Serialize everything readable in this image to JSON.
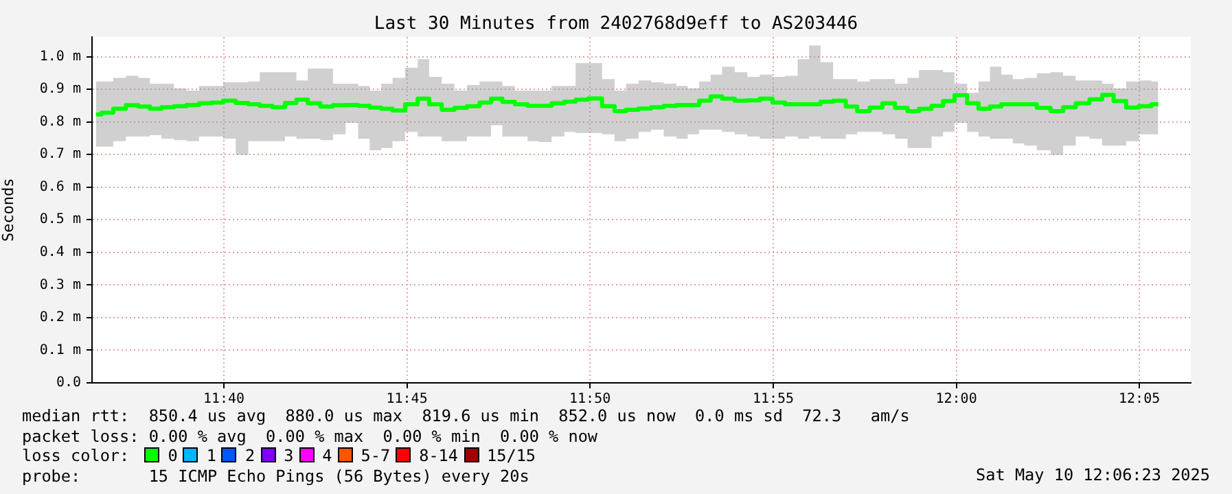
{
  "chart_data": {
    "type": "line",
    "title": "Last 30 Minutes from 2402768d9eff to AS203446",
    "ylabel": "Seconds",
    "xlim": [
      11.6067,
      12.1067
    ],
    "ylim": [
      0,
      1.06
    ],
    "xticks": [
      {
        "value": 11.6667,
        "label": "11:40"
      },
      {
        "value": 11.75,
        "label": "11:45"
      },
      {
        "value": 11.8333,
        "label": "11:50"
      },
      {
        "value": 11.9167,
        "label": "11:55"
      },
      {
        "value": 12.0,
        "label": "12:00"
      },
      {
        "value": 12.0833,
        "label": "12:05"
      }
    ],
    "yticks": [
      {
        "value": 0,
        "label": "0.0"
      },
      {
        "value": 0.1,
        "label": "0.1 m"
      },
      {
        "value": 0.2,
        "label": "0.2 m"
      },
      {
        "value": 0.3,
        "label": "0.3 m"
      },
      {
        "value": 0.4,
        "label": "0.4 m"
      },
      {
        "value": 0.5,
        "label": "0.5 m"
      },
      {
        "value": 0.6,
        "label": "0.6 m"
      },
      {
        "value": 0.7,
        "label": "0.7 m"
      },
      {
        "value": 0.8,
        "label": "0.8 m"
      },
      {
        "value": 0.9,
        "label": "0.9 m"
      },
      {
        "value": 1.0,
        "label": "1.0 m"
      }
    ],
    "grid": true,
    "marker": "none",
    "line_style": "solid",
    "series": [
      {
        "color": "#00ff00",
        "x": [
          11.6085,
          11.6137,
          11.619,
          11.6252,
          11.6304,
          11.6357,
          11.6409,
          11.6471,
          11.6523,
          11.6585,
          11.6637,
          11.669,
          11.6752,
          11.6804,
          11.6857,
          11.6919,
          11.6971,
          11.7023,
          11.7075,
          11.7137,
          11.719,
          11.7252,
          11.7304,
          11.7357,
          11.7409,
          11.746,
          11.7523,
          11.7575,
          11.7627,
          11.769,
          11.7742,
          11.7804,
          11.7857,
          11.7908,
          11.796,
          11.8023,
          11.8075,
          11.8127,
          11.819,
          11.8242,
          11.8293,
          11.8357,
          11.8419,
          11.8471,
          11.8523,
          11.8585,
          11.8637,
          11.87,
          11.8752,
          11.8804,
          11.8856,
          11.8908,
          11.896,
          11.9023,
          11.9075,
          11.9137,
          11.919,
          11.9252,
          11.9304,
          11.9356,
          11.9408,
          11.9471,
          11.9523,
          11.9575,
          11.9637,
          11.969,
          11.9752,
          11.9804,
          11.9856,
          11.9919,
          11.996,
          12.0023,
          12.0075,
          12.0127,
          12.0179,
          12.0231,
          12.0283,
          12.0335,
          12.0398,
          12.046,
          12.0512,
          12.0575,
          12.0637,
          12.069,
          12.0742,
          12.0804,
          12.0857,
          12.0919
        ],
        "values": [
          0.823,
          0.828,
          0.84,
          0.851,
          0.847,
          0.84,
          0.845,
          0.848,
          0.852,
          0.857,
          0.859,
          0.865,
          0.858,
          0.854,
          0.849,
          0.845,
          0.858,
          0.868,
          0.857,
          0.847,
          0.851,
          0.852,
          0.849,
          0.844,
          0.84,
          0.835,
          0.854,
          0.871,
          0.854,
          0.837,
          0.843,
          0.848,
          0.859,
          0.871,
          0.861,
          0.854,
          0.849,
          0.849,
          0.857,
          0.862,
          0.868,
          0.872,
          0.848,
          0.833,
          0.837,
          0.841,
          0.845,
          0.849,
          0.852,
          0.852,
          0.865,
          0.878,
          0.871,
          0.865,
          0.866,
          0.871,
          0.859,
          0.854,
          0.854,
          0.854,
          0.862,
          0.865,
          0.847,
          0.833,
          0.844,
          0.857,
          0.843,
          0.833,
          0.84,
          0.849,
          0.864,
          0.882,
          0.857,
          0.84,
          0.847,
          0.854,
          0.854,
          0.854,
          0.843,
          0.833,
          0.845,
          0.857,
          0.869,
          0.883,
          0.864,
          0.844,
          0.848,
          0.854
        ],
        "lower": [
          0.724,
          0.724,
          0.741,
          0.755,
          0.755,
          0.759,
          0.748,
          0.744,
          0.741,
          0.755,
          0.755,
          0.748,
          0.699,
          0.741,
          0.741,
          0.741,
          0.755,
          0.748,
          0.748,
          0.744,
          0.762,
          0.797,
          0.748,
          0.713,
          0.72,
          0.741,
          0.769,
          0.755,
          0.755,
          0.741,
          0.741,
          0.755,
          0.755,
          0.79,
          0.755,
          0.755,
          0.741,
          0.738,
          0.755,
          0.769,
          0.766,
          0.766,
          0.762,
          0.741,
          0.748,
          0.769,
          0.776,
          0.755,
          0.748,
          0.762,
          0.776,
          0.776,
          0.769,
          0.762,
          0.755,
          0.748,
          0.748,
          0.755,
          0.748,
          0.755,
          0.748,
          0.748,
          0.762,
          0.769,
          0.769,
          0.762,
          0.748,
          0.72,
          0.72,
          0.755,
          0.769,
          0.797,
          0.769,
          0.755,
          0.748,
          0.748,
          0.734,
          0.727,
          0.713,
          0.699,
          0.727,
          0.755,
          0.748,
          0.727,
          0.727,
          0.741,
          0.762,
          0.762
        ],
        "upper": [
          0.924,
          0.924,
          0.935,
          0.941,
          0.935,
          0.917,
          0.917,
          0.903,
          0.896,
          0.91,
          0.91,
          0.921,
          0.921,
          0.924,
          0.952,
          0.952,
          0.952,
          0.927,
          0.963,
          0.963,
          0.917,
          0.917,
          0.91,
          0.896,
          0.917,
          0.935,
          0.966,
          0.992,
          0.938,
          0.917,
          0.896,
          0.913,
          0.924,
          0.924,
          0.91,
          0.896,
          0.896,
          0.896,
          0.91,
          0.91,
          0.98,
          0.98,
          0.931,
          0.896,
          0.917,
          0.927,
          0.921,
          0.917,
          0.91,
          0.903,
          0.924,
          0.945,
          0.969,
          0.952,
          0.938,
          0.945,
          0.938,
          0.941,
          0.992,
          1.034,
          0.983,
          0.931,
          0.931,
          0.924,
          0.931,
          0.931,
          0.917,
          0.935,
          0.959,
          0.959,
          0.952,
          0.917,
          0.889,
          0.924,
          0.969,
          0.945,
          0.931,
          0.935,
          0.949,
          0.952,
          0.941,
          0.927,
          0.927,
          0.917,
          0.903,
          0.924,
          0.927,
          0.924
        ]
      }
    ],
    "annotations": [
      "median rtt:  850.4 us avg  880.0 us max  819.6 us min  852.0 us now  0.0 ms sd  72.3   am/s",
      "packet loss: 0.00 % avg  0.00 % max  0.00 % min  0.00 % now",
      "loss color:",
      "0",
      "1",
      "2",
      "3",
      "4",
      "5-7",
      "8-14",
      "15/15",
      "probe:       15 ICMP Echo Pings (56 Bytes) every 20s",
      "Sat May 10 12:06:23 2025"
    ]
  }
}
